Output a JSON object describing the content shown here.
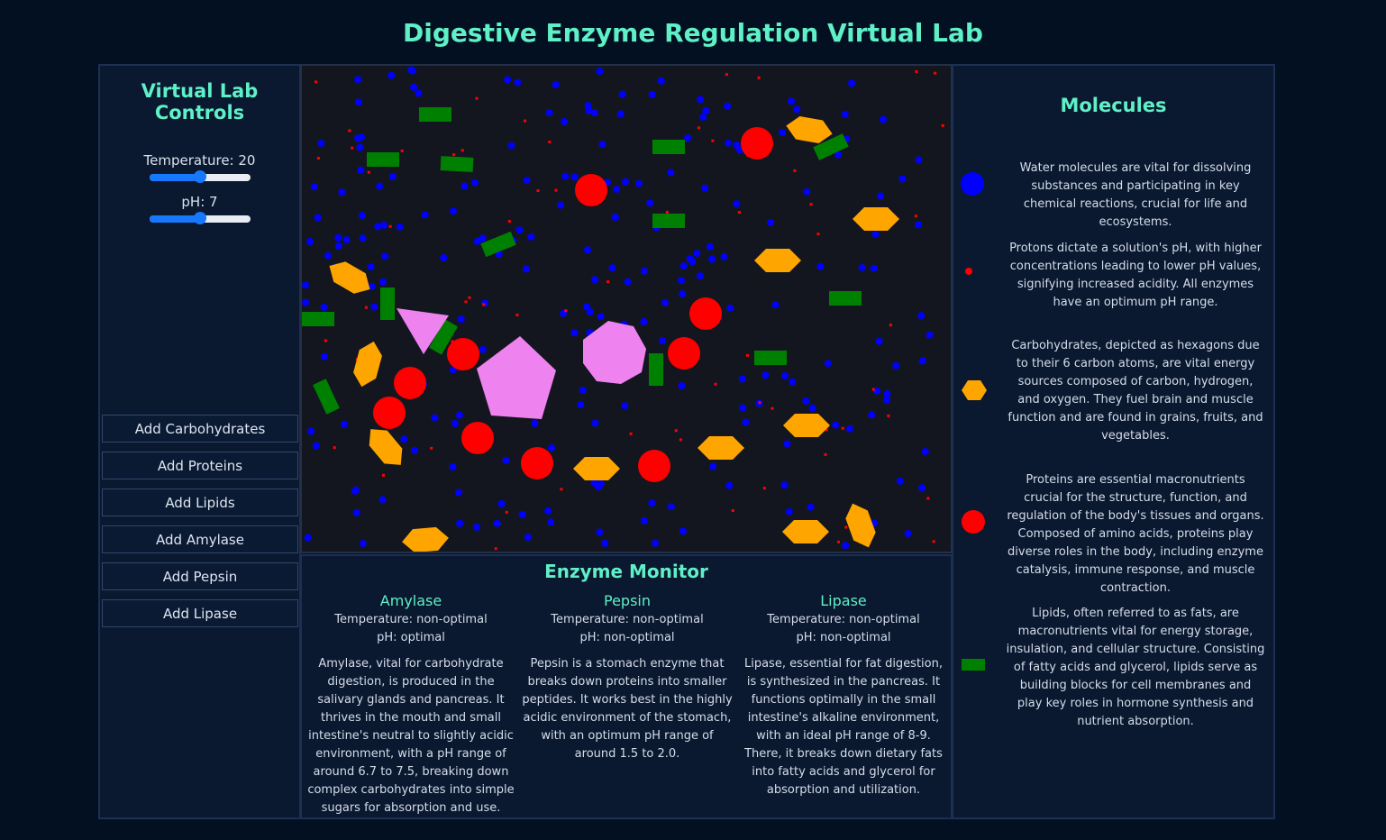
{
  "title": "Digestive Enzyme Regulation Virtual Lab",
  "controls": {
    "heading": "Virtual Lab Controls",
    "temperature": {
      "label": "Temperature: 20",
      "value": 20,
      "min": 0,
      "max": 40
    },
    "ph": {
      "label": "pH: 7",
      "value": 7,
      "min": 0,
      "max": 14
    },
    "buttons": [
      "Add Carbohydrates",
      "Add Proteins",
      "Add Lipids",
      "Add Amylase",
      "Add Pepsin",
      "Add Lipase"
    ]
  },
  "monitor": {
    "heading": "Enzyme Monitor",
    "enzymes": [
      {
        "name": "Amylase",
        "temperature": "Temperature: non-optimal",
        "ph": "pH: optimal",
        "description": "Amylase, vital for carbohydrate digestion, is produced in the salivary glands and pancreas. It thrives in the mouth and small intestine's neutral to slightly acidic environment, with a pH range of around 6.7 to 7.5, breaking down complex carbohydrates into simple sugars for absorption and use."
      },
      {
        "name": "Pepsin",
        "temperature": "Temperature: non-optimal",
        "ph": "pH: non-optimal",
        "description": "Pepsin is a stomach enzyme that breaks down proteins into smaller peptides. It works best in the highly acidic environment of the stomach, with an optimum pH range of around 1.5 to 2.0."
      },
      {
        "name": "Lipase",
        "temperature": "Temperature: non-optimal",
        "ph": "pH: non-optimal",
        "description": "Lipase, essential for fat digestion, is synthesized in the pancreas. It functions optimally in the small intestine's alkaline environment, with an ideal pH range of 8-9. There, it breaks down dietary fats into fatty acids and glycerol for absorption and utilization."
      }
    ]
  },
  "molecules": {
    "heading": "Molecules",
    "items": [
      {
        "icon": "water-molecule-icon",
        "color": "#0000ff",
        "text": "Water molecules are vital for dissolving substances and participating in key chemical reactions, crucial for life and ecosystems."
      },
      {
        "icon": "proton-icon",
        "color": "#ff0000",
        "text": "Protons dictate a solution's pH, with higher concentrations leading to lower pH values, signifying increased acidity. All enzymes have an optimum pH range."
      },
      {
        "icon": "carbohydrate-hexagon-icon",
        "color": "#ffa500",
        "text": "Carbohydrates, depicted as hexagons due to their 6 carbon atoms, are vital energy sources composed of carbon, hydrogen, and oxygen. They fuel brain and muscle function and are found in grains, fruits, and vegetables."
      },
      {
        "icon": "protein-circle-icon",
        "color": "#ff0000",
        "text": "Proteins are essential macronutrients crucial for the structure, function, and regulation of the body's tissues and organs. Composed of amino acids, proteins play diverse roles in the body, including enzyme catalysis, immune response, and muscle contraction."
      },
      {
        "icon": "lipid-rectangle-icon",
        "color": "#008000",
        "text": "Lipids, often referred to as fats, are macronutrients vital for energy storage, insulation, and cellular structure. Consisting of fatty acids and glycerol, lipids serve as building blocks for cell membranes and play key roles in hormone synthesis and nutrient absorption."
      }
    ]
  },
  "colors": {
    "accent": "#5ff0c7",
    "water": "#0000ff",
    "proton": "#ff0000",
    "carbohydrate": "#ffa500",
    "protein": "#ff0000",
    "lipid": "#008000",
    "enzyme": "#ee82ee",
    "slider": "#1677ff"
  }
}
